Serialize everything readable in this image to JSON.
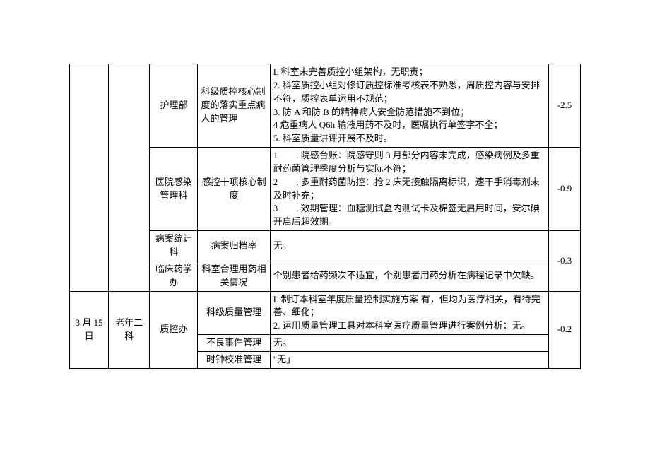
{
  "col_widths": {
    "c1": 55,
    "c2": 58,
    "c3": 68,
    "c4": 102,
    "c5": 393,
    "c6": 45
  },
  "rows": [
    {
      "dept": "护理部",
      "item": "科级质控核心制度的落实重点病人的管理",
      "detail": "L 科室未完善质控小组架构，无职责；\n2. 科室质控小组对修订质控标准考核表不熟悉，周质控内容与安排不符，质控表单运用不规范；\n3. 防 A 和防 B 的精神病人安全防范措施不到位；\n4 危重病人 Q6h 输液用药不及时，医嘱执行单签字不全；\n5. 科室质量讲评开展不及时。",
      "score": "-2.5"
    },
    {
      "dept": "医院感染管理科",
      "item": "感控十项核心制度",
      "detail": "1　　. 院感台账：院感守则 3 月部分内容未完成，感染病例及多重耐药菌管理季度分析与实际不符；\n2　　. 多重耐药菌防控：抢 2 床无接触隔离标识，速干手消毒剂未及时补充；\n3　　. 效期管理：血糖测试盒内测试卡及棉签无启用时间，安尔碘开启后超效期。",
      "score": "-0.9"
    },
    {
      "dept": "病案统计科",
      "item": "病案归档率",
      "detail": "无。",
      "score": ""
    },
    {
      "dept": "临床药学办",
      "item": "科室合理用药相关情况",
      "detail": "个别患者给药频次不适宜，个别患者用药分析在病程记录中欠缺。",
      "score": "-0.3"
    },
    {
      "date": "3 月 15 日",
      "ward": "老年二科",
      "dept": "质控办",
      "item": "科级质量管理",
      "detail": "L 制订本科室年度质量控制实施方案 有，但均为医疗相关，有待完善、细化；\n2. 运用质量管理工具对本科室医疗质量管理进行案例分析：无。",
      "score": "-0.2"
    },
    {
      "item": "不良事件管理",
      "detail": "无。"
    },
    {
      "item": "时钟校准管理",
      "detail": "\"无」"
    }
  ]
}
